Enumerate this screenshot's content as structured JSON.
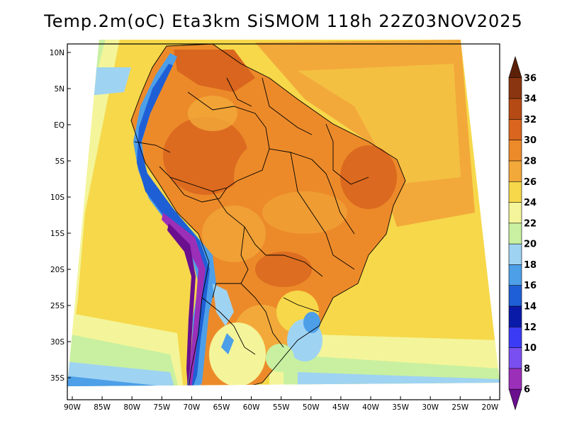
{
  "title": "Temp.2m(oC) Eta3km SiSMOM 118h 22Z03NOV2025",
  "map": {
    "lat_labels": [
      "10N",
      "5N",
      "EQ",
      "5S",
      "10S",
      "15S",
      "20S",
      "25S",
      "30S",
      "35S"
    ],
    "lon_labels": [
      "90W",
      "85W",
      "80W",
      "75W",
      "70W",
      "65W",
      "60W",
      "55W",
      "50W",
      "45W",
      "40W",
      "35W",
      "30W",
      "25W",
      "20W"
    ]
  },
  "colorbar": {
    "labels": [
      "6",
      "8",
      "10",
      "12",
      "14",
      "16",
      "18",
      "20",
      "22",
      "24",
      "26",
      "28",
      "30",
      "32",
      "34",
      "36"
    ],
    "colors": [
      "#6a0f8e",
      "#9b2fb8",
      "#7a4ff0",
      "#3b3bf5",
      "#0a1aa8",
      "#1f5fd6",
      "#4d9fe8",
      "#9fd3f2",
      "#c8f0a0",
      "#f4f59a",
      "#f6d84a",
      "#f2a93a",
      "#ec8a2a",
      "#d9651e",
      "#b54a15",
      "#8a3410",
      "#5c2008"
    ]
  }
}
